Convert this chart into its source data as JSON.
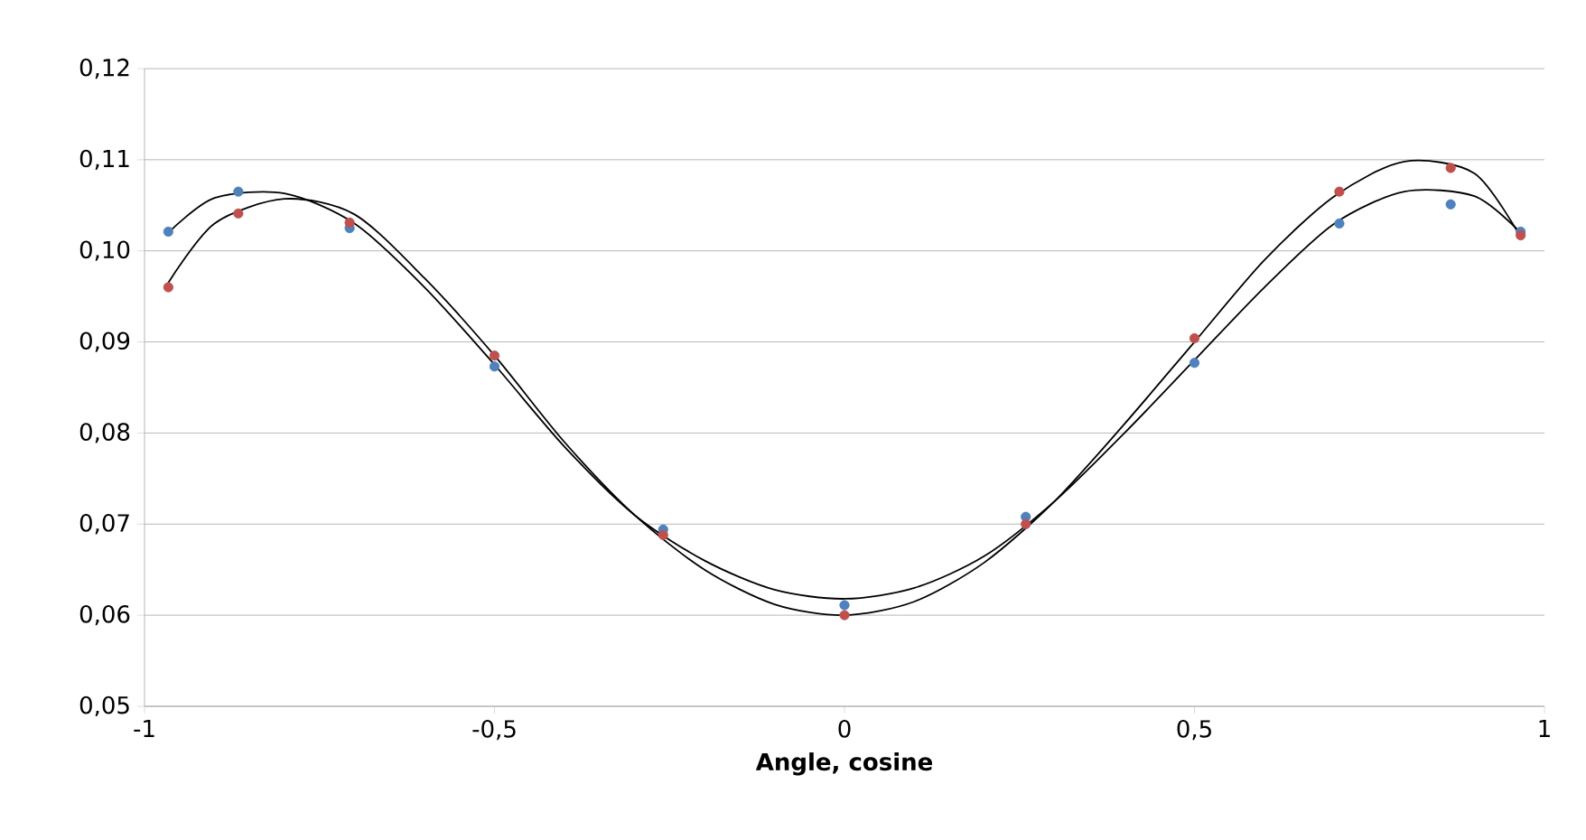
{
  "chart_data": {
    "type": "scatter",
    "xlabel": "Angle, cosine",
    "x": [
      -0.966,
      -0.866,
      -0.707,
      -0.5,
      -0.259,
      0,
      0.259,
      0.5,
      0.707,
      0.866,
      0.966
    ],
    "series": [
      {
        "color": "#4f81bd",
        "marker": "circle",
        "values": [
          0.1021,
          0.1065,
          0.1025,
          0.0873,
          0.0694,
          0.0611,
          0.0708,
          0.0877,
          0.103,
          0.1051,
          0.1021
        ]
      },
      {
        "color": "#c0504d",
        "marker": "circle",
        "values": [
          0.096,
          0.1041,
          0.1031,
          0.0885,
          0.0688,
          0.06,
          0.07,
          0.0904,
          0.1065,
          0.1091,
          0.1017
        ]
      },
      {
        "type": "line",
        "color": "#000000",
        "marker": "none",
        "line_style": "solid",
        "x": [
          -0.966,
          -0.9,
          -0.8,
          -0.7,
          -0.6,
          -0.5,
          -0.4,
          -0.3,
          -0.2,
          -0.1,
          0,
          0.1,
          0.2,
          0.3,
          0.4,
          0.5,
          0.6,
          0.7,
          0.8,
          0.9,
          0.966
        ],
        "values": [
          0.102,
          0.1058,
          0.1063,
          0.103,
          0.096,
          0.0875,
          0.0785,
          0.071,
          0.066,
          0.0628,
          0.0618,
          0.063,
          0.0665,
          0.0725,
          0.08,
          0.088,
          0.096,
          0.103,
          0.1065,
          0.106,
          0.102
        ]
      },
      {
        "type": "line",
        "color": "#000000",
        "marker": "none",
        "line_style": "solid",
        "x": [
          -0.966,
          -0.9,
          -0.8,
          -0.7,
          -0.6,
          -0.5,
          -0.4,
          -0.3,
          -0.2,
          -0.1,
          0,
          0.1,
          0.2,
          0.3,
          0.4,
          0.5,
          0.6,
          0.7,
          0.8,
          0.9,
          0.966
        ],
        "values": [
          0.0965,
          0.103,
          0.1057,
          0.104,
          0.097,
          0.0885,
          0.079,
          0.071,
          0.065,
          0.0612,
          0.06,
          0.0615,
          0.0658,
          0.0725,
          0.081,
          0.09,
          0.099,
          0.106,
          0.1098,
          0.1085,
          0.1015
        ]
      }
    ],
    "xlim": [
      -1,
      1
    ],
    "ylim": [
      0.05,
      0.12
    ],
    "xticks": [
      -1,
      {
        "value": -0.5,
        "label": "-0,5"
      },
      0,
      {
        "value": 0.5,
        "label": "0,5"
      },
      1
    ],
    "yticks": [
      {
        "value": 0.05,
        "label": "0,05"
      },
      {
        "value": 0.06,
        "label": "0,06"
      },
      {
        "value": 0.07,
        "label": "0,07"
      },
      {
        "value": 0.08,
        "label": "0,08"
      },
      {
        "value": 0.09,
        "label": "0,09"
      },
      {
        "value": 0.1,
        "label": "0,10"
      },
      {
        "value": 0.11,
        "label": "0,11"
      },
      {
        "value": 0.12,
        "label": "0,12"
      }
    ],
    "grid": "y"
  }
}
